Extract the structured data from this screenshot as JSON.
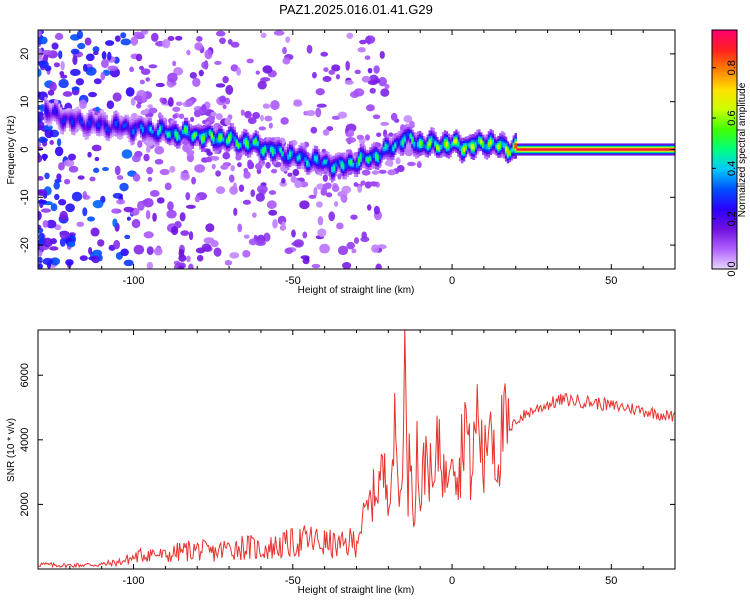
{
  "title": "PAZ1.2025.016.01.41.G29",
  "chart_data": [
    {
      "type": "heatmap",
      "xlabel": "Height of straight line (km)",
      "ylabel": "Frequency (Hz)",
      "xlim": [
        -130,
        70
      ],
      "ylim": [
        -25,
        25
      ],
      "xticks": [
        -100,
        -50,
        0,
        50
      ],
      "yticks": [
        -20,
        -10,
        0,
        10,
        20
      ],
      "colorbar": {
        "label": "Normalized spectral amplitude",
        "range": [
          0,
          0.95
        ],
        "ticks": [
          0.0,
          0.2,
          0.4,
          0.6,
          0.8
        ],
        "colormap": [
          "#e8d6ff",
          "#b060ff",
          "#7010e0",
          "#2a00ff",
          "#0050ff",
          "#00c8ff",
          "#00ff80",
          "#40ff00",
          "#c8ff00",
          "#ffe000",
          "#ff8000",
          "#ff2020",
          "#ff0070"
        ]
      },
      "ridge": {
        "x": [
          -130,
          -120,
          -110,
          -100,
          -90,
          -80,
          -70,
          -60,
          -50,
          -40,
          -35,
          -30,
          -25,
          -20,
          -15,
          -10,
          -5,
          0,
          5,
          10,
          15,
          20,
          30,
          40,
          50,
          60,
          70
        ],
        "freq": [
          8.5,
          6,
          5,
          4.5,
          3.5,
          3,
          2,
          0.5,
          -1.5,
          -3,
          -3.5,
          -2.5,
          -1.5,
          0,
          2.5,
          1,
          1,
          1,
          0.5,
          1.5,
          0.5,
          0,
          0,
          0,
          0,
          0,
          0
        ],
        "peak_amplitude": [
          0.25,
          0.3,
          0.3,
          0.35,
          0.5,
          0.6,
          0.6,
          0.55,
          0.45,
          0.45,
          0.5,
          0.55,
          0.55,
          0.45,
          0.5,
          0.6,
          0.65,
          0.7,
          0.7,
          0.65,
          0.65,
          0.9,
          0.9,
          0.9,
          0.9,
          0.9,
          0.9
        ]
      }
    },
    {
      "type": "line",
      "xlabel": "Height of straight line (km)",
      "ylabel": "SNR (10 * v/v)",
      "xlim": [
        -130,
        70
      ],
      "ylim": [
        0,
        7400
      ],
      "xticks": [
        -100,
        -50,
        0,
        50
      ],
      "yticks": [
        2000,
        4000,
        6000
      ],
      "color": "#e8322e",
      "series": [
        {
          "x": [
            -130,
            -125,
            -120,
            -115,
            -110,
            -105,
            -100,
            -95,
            -90,
            -85,
            -80,
            -75,
            -70,
            -65,
            -60,
            -55,
            -50,
            -45,
            -40,
            -35,
            -30,
            -28,
            -25,
            -22,
            -20,
            -18,
            -16,
            -15,
            -14,
            -13,
            -12,
            -11,
            -10,
            -8,
            -6,
            -4,
            -2,
            0,
            2,
            4,
            6,
            8,
            10,
            12,
            14,
            16,
            18,
            20,
            25,
            30,
            35,
            40,
            45,
            50,
            55,
            60,
            65,
            70
          ],
          "y": [
            150,
            120,
            110,
            130,
            140,
            200,
            350,
            500,
            400,
            550,
            600,
            500,
            650,
            700,
            600,
            700,
            800,
            900,
            800,
            700,
            900,
            1500,
            2200,
            3000,
            2500,
            4100,
            1800,
            7400,
            2000,
            4200,
            1500,
            3800,
            2100,
            3800,
            2300,
            4200,
            2500,
            4600,
            2600,
            5000,
            2800,
            5000,
            3000,
            5200,
            3200,
            4400,
            4200,
            4600,
            4900,
            5100,
            5250,
            5200,
            5150,
            5050,
            5000,
            4900,
            4800,
            4700
          ]
        }
      ]
    }
  ]
}
